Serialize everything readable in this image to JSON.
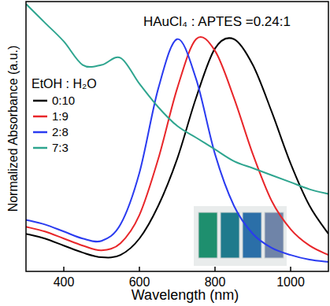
{
  "chart_data": {
    "type": "line",
    "title": "HAuCl₄ : APTES =0.24:1",
    "x_label": "Wavelength (nm)",
    "y_label": "Normalized Absorbance (a.u.)",
    "legend_title": "EtOH : H₂O",
    "x": [
      300,
      350,
      400,
      450,
      500,
      550,
      600,
      650,
      700,
      750,
      800,
      850,
      900,
      950,
      1000,
      1050,
      1100
    ],
    "series": [
      {
        "name": "0:10",
        "color": "#000000",
        "values": [
          0.16,
          0.14,
          0.11,
          0.08,
          0.06,
          0.07,
          0.14,
          0.28,
          0.48,
          0.74,
          0.95,
          0.99,
          0.88,
          0.68,
          0.46,
          0.28,
          0.16
        ]
      },
      {
        "name": "1:9",
        "color": "#e8262a",
        "values": [
          0.19,
          0.17,
          0.14,
          0.11,
          0.09,
          0.12,
          0.24,
          0.48,
          0.78,
          0.99,
          0.94,
          0.74,
          0.5,
          0.3,
          0.18,
          0.11,
          0.07
        ]
      },
      {
        "name": "2:8",
        "color": "#2a3bf0",
        "values": [
          0.22,
          0.2,
          0.17,
          0.14,
          0.13,
          0.2,
          0.42,
          0.78,
          0.99,
          0.82,
          0.5,
          0.28,
          0.16,
          0.1,
          0.07,
          0.05,
          0.04
        ]
      },
      {
        "name": "7:3",
        "color": "#2ea58f",
        "values": [
          1.14,
          1.06,
          0.98,
          0.88,
          0.88,
          0.91,
          0.8,
          0.7,
          0.62,
          0.57,
          0.52,
          0.47,
          0.44,
          0.41,
          0.38,
          0.35,
          0.33
        ]
      }
    ],
    "xlim": [
      300,
      1100
    ],
    "ylim": [
      0,
      1.15
    ],
    "xticks": [
      400,
      600,
      800,
      1000
    ],
    "tick_labels": "x",
    "legend": "upper left"
  }
}
